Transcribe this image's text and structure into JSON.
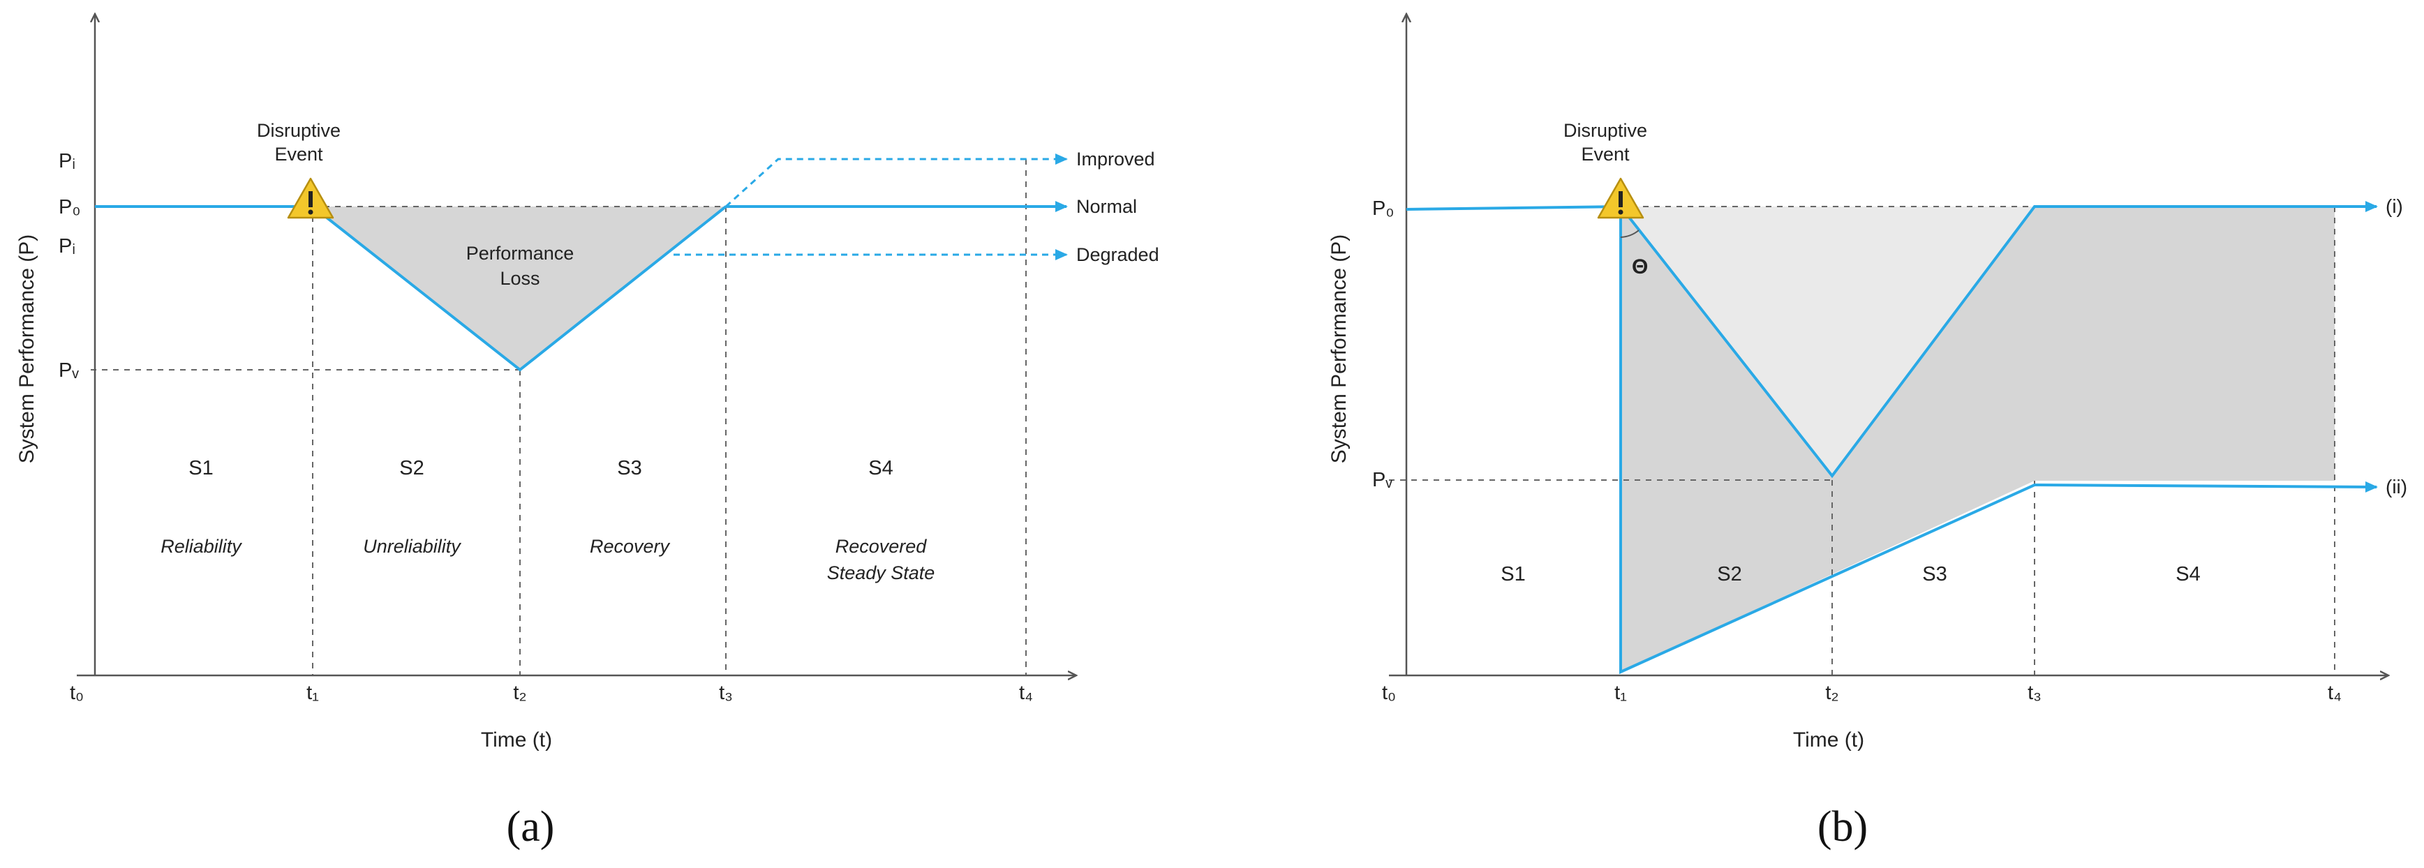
{
  "colors": {
    "line": "#2aa9e6",
    "axis": "#555555",
    "loss_fill": "#d6d6d6",
    "light_fill": "#eaeaea",
    "dash": "#666666",
    "warning": "#f3c72b"
  },
  "panel_a": {
    "caption": "(a)",
    "ylabel": "System Performance (P)",
    "xlabel": "Time (t)",
    "ticks": {
      "t0": "t₀",
      "t1": "t₁",
      "t2": "t₂",
      "t3": "t₃",
      "t4": "t₄"
    },
    "yticks": {
      "p_improved": "Pᵢ",
      "p0": "P₀",
      "p_degraded": "Pᵢ",
      "pv": "Pᵥ"
    },
    "event": {
      "line1": "Disruptive",
      "line2": "Event",
      "icon": "warning-triangle-icon"
    },
    "loss": {
      "line1": "Performance",
      "line2": "Loss"
    },
    "outcomes": {
      "improved": "Improved",
      "normal": "Normal",
      "degraded": "Degraded"
    },
    "stages": [
      {
        "id": "S1",
        "name": "Reliability"
      },
      {
        "id": "S2",
        "name": "Unreliability"
      },
      {
        "id": "S3",
        "name": "Recovery"
      },
      {
        "id": "S4",
        "name_line1": "Recovered",
        "name_line2": "Steady State"
      }
    ]
  },
  "panel_b": {
    "caption": "(b)",
    "ylabel": "System Performance (P)",
    "xlabel": "Time (t)",
    "ticks": {
      "t0": "t₀",
      "t1": "t₁",
      "t2": "t₂",
      "t3": "t₃",
      "t4": "t₄"
    },
    "yticks": {
      "p0": "P₀",
      "pv": "Pᵥ"
    },
    "event": {
      "line1": "Disruptive",
      "line2": "Event",
      "icon": "warning-triangle-icon"
    },
    "angle": "Θ",
    "curves": {
      "i": "(i)",
      "ii": "(ii)"
    },
    "stages": [
      "S1",
      "S2",
      "S3",
      "S4"
    ]
  }
}
